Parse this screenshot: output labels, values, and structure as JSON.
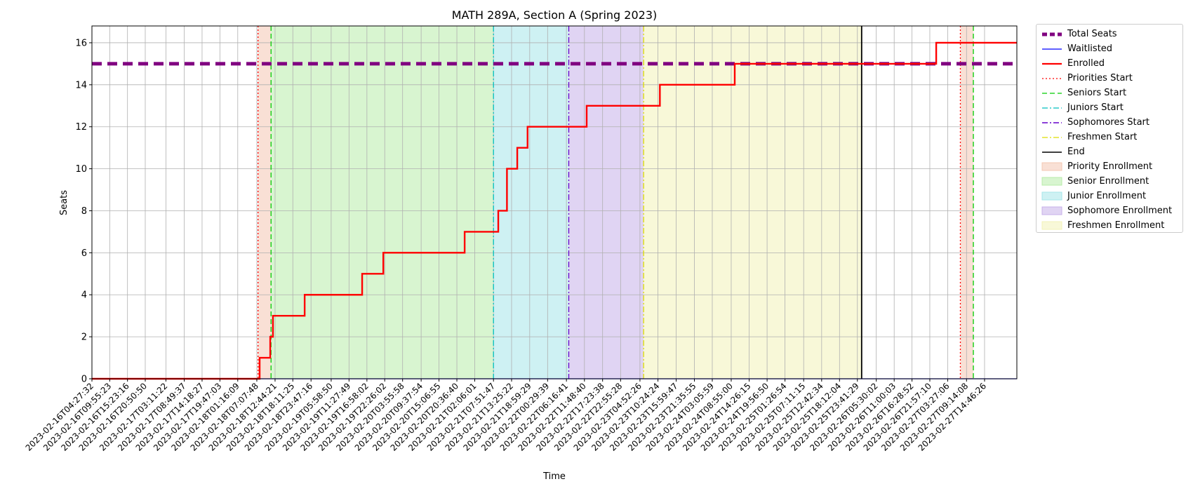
{
  "chart_data": {
    "type": "line",
    "title": "MATH 289A, Section A (Spring 2023)",
    "xlabel": "Time",
    "ylabel": "Seats",
    "ylim": [
      0,
      16.8
    ],
    "xlim": [
      "2023-02-16T04:27:32",
      "2023-02-28T00:42:00"
    ],
    "yticks": [
      0,
      2,
      4,
      6,
      8,
      10,
      12,
      14,
      16
    ],
    "xticks": [
      "2023-02-16T04:27:32",
      "2023-02-16T09:55:23",
      "2023-02-16T15:23:16",
      "2023-02-16T20:50:50",
      "2023-02-17T03:11:22",
      "2023-02-17T08:49:37",
      "2023-02-17T14:18:27",
      "2023-02-17T19:47:03",
      "2023-02-18T01:16:09",
      "2023-02-18T07:07:48",
      "2023-02-18T12:44:21",
      "2023-02-18T18:11:25",
      "2023-02-18T23:47:16",
      "2023-02-19T05:58:50",
      "2023-02-19T11:27:49",
      "2023-02-19T16:58:02",
      "2023-02-19T22:26:02",
      "2023-02-20T03:55:58",
      "2023-02-20T09:37:54",
      "2023-02-20T15:06:55",
      "2023-02-20T20:36:40",
      "2023-02-21T02:06:01",
      "2023-02-21T07:51:47",
      "2023-02-21T13:25:22",
      "2023-02-21T18:59:29",
      "2023-02-22T00:29:39",
      "2023-02-22T06:16:41",
      "2023-02-22T11:48:40",
      "2023-02-22T17:23:38",
      "2023-02-22T22:55:28",
      "2023-02-23T04:52:26",
      "2023-02-23T10:24:24",
      "2023-02-23T15:59:47",
      "2023-02-23T21:35:55",
      "2023-02-24T03:05:59",
      "2023-02-24T08:55:00",
      "2023-02-24T14:26:15",
      "2023-02-24T19:56:50",
      "2023-02-25T01:26:54",
      "2023-02-25T07:11:15",
      "2023-02-25T12:42:34",
      "2023-02-25T18:12:04",
      "2023-02-25T23:41:29",
      "2023-02-26T05:30:02",
      "2023-02-26T11:00:03",
      "2023-02-26T16:28:52",
      "2023-02-26T21:57:10",
      "2023-02-27T03:27:06",
      "2023-02-27T09:14:08",
      "2023-02-27T14:46:26"
    ],
    "grid": true,
    "legend_position": "outside-right",
    "series": [
      {
        "name": "Total Seats",
        "style": "dashed",
        "color": "#800080",
        "x": [
          "2023-02-16T04:27:32",
          "2023-02-28T00:42:00"
        ],
        "values": [
          15,
          15
        ]
      },
      {
        "name": "Waitlisted",
        "style": "solid",
        "color": "#0000ff",
        "x": [
          "2023-02-16T04:27:32",
          "2023-02-28T00:42:00"
        ],
        "values": [
          0,
          0
        ]
      },
      {
        "name": "Enrolled",
        "style": "step",
        "color": "#ff0000",
        "x": [
          "2023-02-16T04:27:32",
          "2023-02-18T08:00:00",
          "2023-02-18T11:15:00",
          "2023-02-18T12:05:00",
          "2023-02-18T12:44:21",
          "2023-02-18T21:50:00",
          "2023-02-19T15:30:00",
          "2023-02-19T22:00:00",
          "2023-02-20T23:00:00",
          "2023-02-21T09:20:00",
          "2023-02-21T12:00:00",
          "2023-02-21T15:10:00",
          "2023-02-21T18:20:00",
          "2023-02-22T12:30:00",
          "2023-02-23T11:00:00",
          "2023-02-24T10:00:00",
          "2023-02-26T23:55:00",
          "2023-02-28T00:42:00"
        ],
        "values": [
          0,
          1,
          2,
          3,
          3,
          4,
          5,
          6,
          7,
          8,
          10,
          11,
          12,
          13,
          14,
          15,
          16,
          16
        ]
      }
    ],
    "markers": [
      {
        "name": "Priorities Start",
        "style": "dotted",
        "color": "#ff0000",
        "x": "2023-02-18T07:30:00"
      },
      {
        "name": "Priorities Start",
        "style": "dotted",
        "color": "#ff0000",
        "x": "2023-02-27T07:20:00"
      },
      {
        "name": "Seniors Start",
        "style": "dashed",
        "color": "#00cc00",
        "x": "2023-02-18T11:30:00"
      },
      {
        "name": "Seniors Start",
        "style": "dashed",
        "color": "#00cc00",
        "x": "2023-02-27T11:20:00"
      },
      {
        "name": "Juniors Start",
        "style": "dashdot",
        "color": "#00bfbf",
        "x": "2023-02-21T07:51:47"
      },
      {
        "name": "Sophomores Start",
        "style": "dashdot",
        "color": "#6600cc",
        "x": "2023-02-22T07:00:00"
      },
      {
        "name": "Freshmen Start",
        "style": "dashdot",
        "color": "#dddd00",
        "x": "2023-02-23T06:00:00"
      },
      {
        "name": "End",
        "style": "solid",
        "color": "#000000",
        "x": "2023-02-26T01:00:00"
      }
    ],
    "spans": [
      {
        "name": "Priority Enrollment",
        "color": "#f4c7b2",
        "from": "2023-02-18T07:30:00",
        "to": "2023-02-18T11:30:00"
      },
      {
        "name": "Priority Enrollment",
        "color": "#f4c7b2",
        "from": "2023-02-27T07:20:00",
        "to": "2023-02-27T11:20:00"
      },
      {
        "name": "Senior Enrollment",
        "color": "#b8ecaa",
        "from": "2023-02-18T11:30:00",
        "to": "2023-02-21T07:51:47"
      },
      {
        "name": "Junior Enrollment",
        "color": "#a6e6ea",
        "from": "2023-02-21T07:51:47",
        "to": "2023-02-22T07:00:00"
      },
      {
        "name": "Sophomore Enrollment",
        "color": "#c7b0ea",
        "from": "2023-02-22T07:00:00",
        "to": "2023-02-23T06:00:00"
      },
      {
        "name": "Freshmen Enrollment",
        "color": "#f2f2b8",
        "from": "2023-02-23T06:00:00",
        "to": "2023-02-26T01:00:00"
      }
    ]
  },
  "legend": {
    "items": [
      {
        "label": "Total Seats",
        "kind": "line",
        "style": "dashed",
        "color": "#800080",
        "width": 5
      },
      {
        "label": "Waitlisted",
        "kind": "line",
        "style": "solid",
        "color": "#0000ff",
        "width": 1.2
      },
      {
        "label": "Enrolled",
        "kind": "line",
        "style": "solid",
        "color": "#ff0000",
        "width": 2.2
      },
      {
        "label": "Priorities Start",
        "kind": "line",
        "style": "dotted",
        "color": "#ff0000",
        "width": 1.2
      },
      {
        "label": "Seniors Start",
        "kind": "line",
        "style": "dashed",
        "color": "#00cc00",
        "width": 1.2
      },
      {
        "label": "Juniors Start",
        "kind": "line",
        "style": "dashdot",
        "color": "#00bfbf",
        "width": 1.2
      },
      {
        "label": "Sophomores Start",
        "kind": "line",
        "style": "dashdot",
        "color": "#6600cc",
        "width": 1.6
      },
      {
        "label": "Freshmen Start",
        "kind": "line",
        "style": "dashdot",
        "color": "#dddd00",
        "width": 1.2
      },
      {
        "label": "End",
        "kind": "line",
        "style": "solid",
        "color": "#000000",
        "width": 1.6
      },
      {
        "label": "Priority Enrollment",
        "kind": "patch",
        "color": "#f4c7b2"
      },
      {
        "label": "Senior Enrollment",
        "kind": "patch",
        "color": "#b8ecaa"
      },
      {
        "label": "Junior Enrollment",
        "kind": "patch",
        "color": "#a6e6ea"
      },
      {
        "label": "Sophomore Enrollment",
        "kind": "patch",
        "color": "#c7b0ea"
      },
      {
        "label": "Freshmen Enrollment",
        "kind": "patch",
        "color": "#f2f2b8"
      }
    ]
  }
}
